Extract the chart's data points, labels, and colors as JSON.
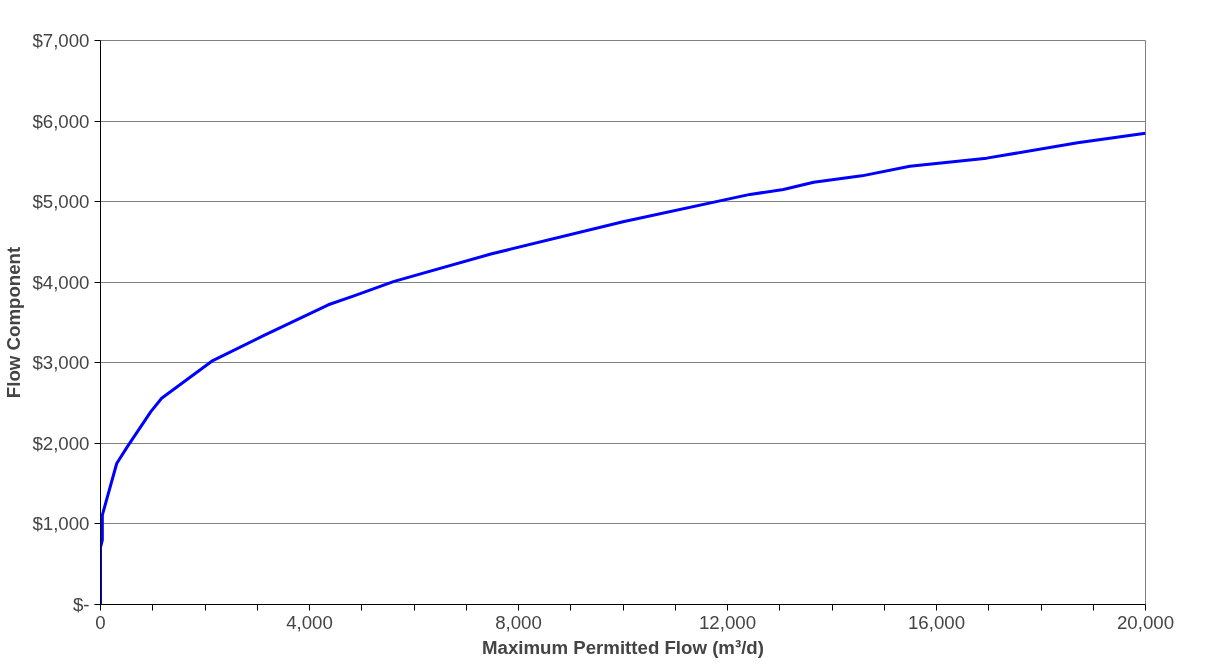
{
  "chart_data": {
    "type": "line",
    "xlabel": "Maximum Permitted Flow (m³/d)",
    "ylabel": "Flow Component",
    "series": [
      {
        "color": "#0000ff",
        "x": [
          0,
          0,
          35,
          35,
          310,
          515,
          960,
          1170,
          2130,
          3130,
          4360,
          4850,
          5620,
          7470,
          10000,
          12430,
          13070,
          13650,
          14570,
          15490,
          16960,
          18700,
          20000
        ],
        "values": [
          0,
          710,
          800,
          1110,
          1750,
          1960,
          2390,
          2560,
          3020,
          3340,
          3720,
          3830,
          4010,
          4350,
          4750,
          5090,
          5150,
          5240,
          5320,
          5440,
          5540,
          5730,
          5850
        ]
      }
    ],
    "xlim": [
      0,
      20000
    ],
    "ylim": [
      0,
      7000
    ],
    "xticks": [
      0,
      {
        "value": 1000,
        "label": null
      },
      {
        "value": 2000,
        "label": null
      },
      {
        "value": 3000,
        "label": null
      },
      {
        "value": 4000,
        "label": "4,000"
      },
      {
        "value": 5000,
        "label": null
      },
      {
        "value": 6000,
        "label": null
      },
      {
        "value": 7000,
        "label": null
      },
      {
        "value": 8000,
        "label": "8,000"
      },
      {
        "value": 9000,
        "label": null
      },
      {
        "value": 10000,
        "label": null
      },
      {
        "value": 11000,
        "label": null
      },
      {
        "value": 12000,
        "label": "12,000"
      },
      {
        "value": 13000,
        "label": null
      },
      {
        "value": 14000,
        "label": null
      },
      {
        "value": 15000,
        "label": null
      },
      {
        "value": 16000,
        "label": "16,000"
      },
      {
        "value": 17000,
        "label": null
      },
      {
        "value": 18000,
        "label": null
      },
      {
        "value": 19000,
        "label": null
      },
      {
        "value": 20000,
        "label": "20,000"
      }
    ],
    "yticks": [
      {
        "value": 0,
        "label": "$-"
      },
      {
        "value": 1000,
        "label": "$1,000"
      },
      {
        "value": 2000,
        "label": "$2,000"
      },
      {
        "value": 3000,
        "label": "$3,000"
      },
      {
        "value": 4000,
        "label": "$4,000"
      },
      {
        "value": 5000,
        "label": "$5,000"
      },
      {
        "value": 6000,
        "label": "$6,000"
      },
      {
        "value": 7000,
        "label": "$7,000"
      }
    ],
    "grid": "y",
    "marker": "none",
    "line_style": "solid"
  }
}
